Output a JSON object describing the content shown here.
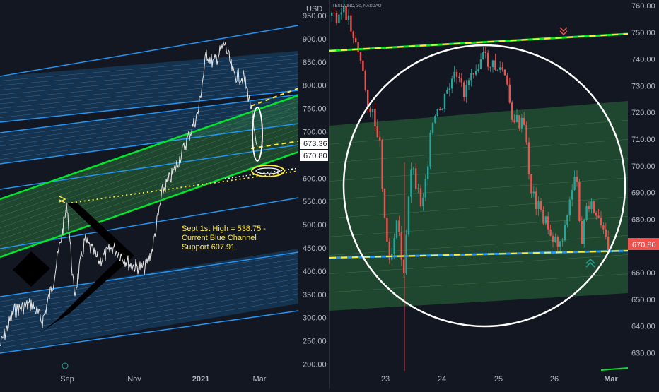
{
  "colors": {
    "background": "#131722",
    "up": "#26a69a",
    "down": "#ef5350",
    "blue_line": "#2196f3",
    "green_line": "#00e62e",
    "yellow": "#ffeb3b",
    "white": "#ffffff",
    "axis_text": "#b2b5be",
    "divider": "#2a2e39"
  },
  "chart_data": [
    {
      "type": "line",
      "panel": "left",
      "yaxis_label": "USD",
      "y_ticks": [
        "950.00",
        "900.00",
        "850.00",
        "800.00",
        "750.00",
        "700.00",
        "650.00",
        "600.00",
        "550.00",
        "500.00",
        "450.00",
        "400.00",
        "350.00",
        "300.00",
        "250.00",
        "200.00"
      ],
      "x_ticks": [
        "Sep",
        "Nov",
        "2021",
        "Mar"
      ],
      "ylim": [
        183,
        978
      ],
      "price_labels": [
        "673.36",
        "670.80"
      ],
      "annotation": "Sept 1st High = 538.75 -\nCurrent Blue Channel\nSupport 607.91",
      "sept_high": 538.75,
      "channel_support": 607.91,
      "grid": false
    },
    {
      "type": "candlestick",
      "panel": "right",
      "symbol": "TESLA INC, 30, NASDAQ",
      "y_ticks": [
        "760.00",
        "750.00",
        "740.00",
        "730.00",
        "720.00",
        "710.00",
        "700.00",
        "690.00",
        "680.00",
        "670.00",
        "660.00",
        "650.00",
        "640.00",
        "630.00"
      ],
      "x_ticks": [
        "23",
        "24",
        "25",
        "26",
        "Mar"
      ],
      "ylim": [
        624,
        761
      ],
      "last_price": "670.80",
      "grid": false
    }
  ]
}
